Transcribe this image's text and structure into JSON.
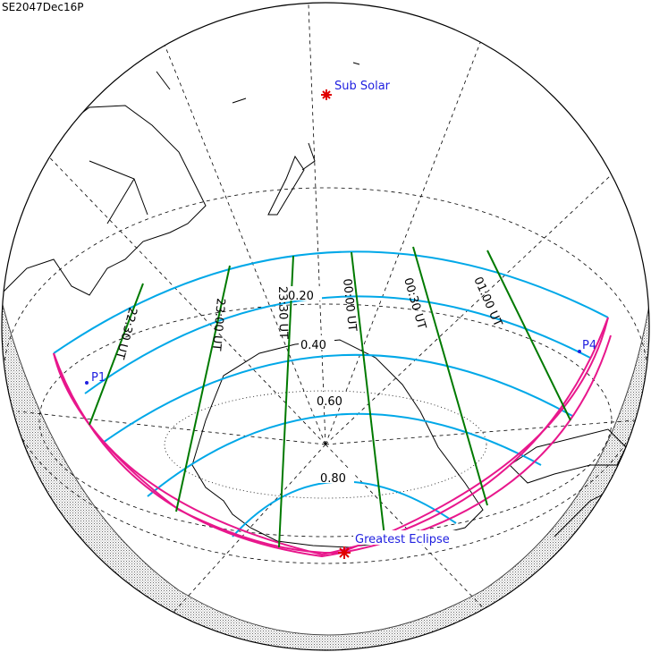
{
  "title": "SE2047Dec16P",
  "points": {
    "sub_solar": "Sub Solar",
    "greatest_eclipse": "Greatest Eclipse",
    "p1": "P1",
    "p4": "P4"
  },
  "magnitude_labels": [
    "0.20",
    "0.40",
    "0.60",
    "0.80"
  ],
  "time_labels": [
    "22:30 UT",
    "23:00 UT",
    "23:30 UT",
    "00:00 UT",
    "00:30 UT",
    "01:00 UT"
  ],
  "colors": {
    "magnitude_lines": "#00a8e8",
    "time_lines": "#007a00",
    "limits": "#e8178c",
    "labels": "#2020e0",
    "markers": "#e00000"
  }
}
